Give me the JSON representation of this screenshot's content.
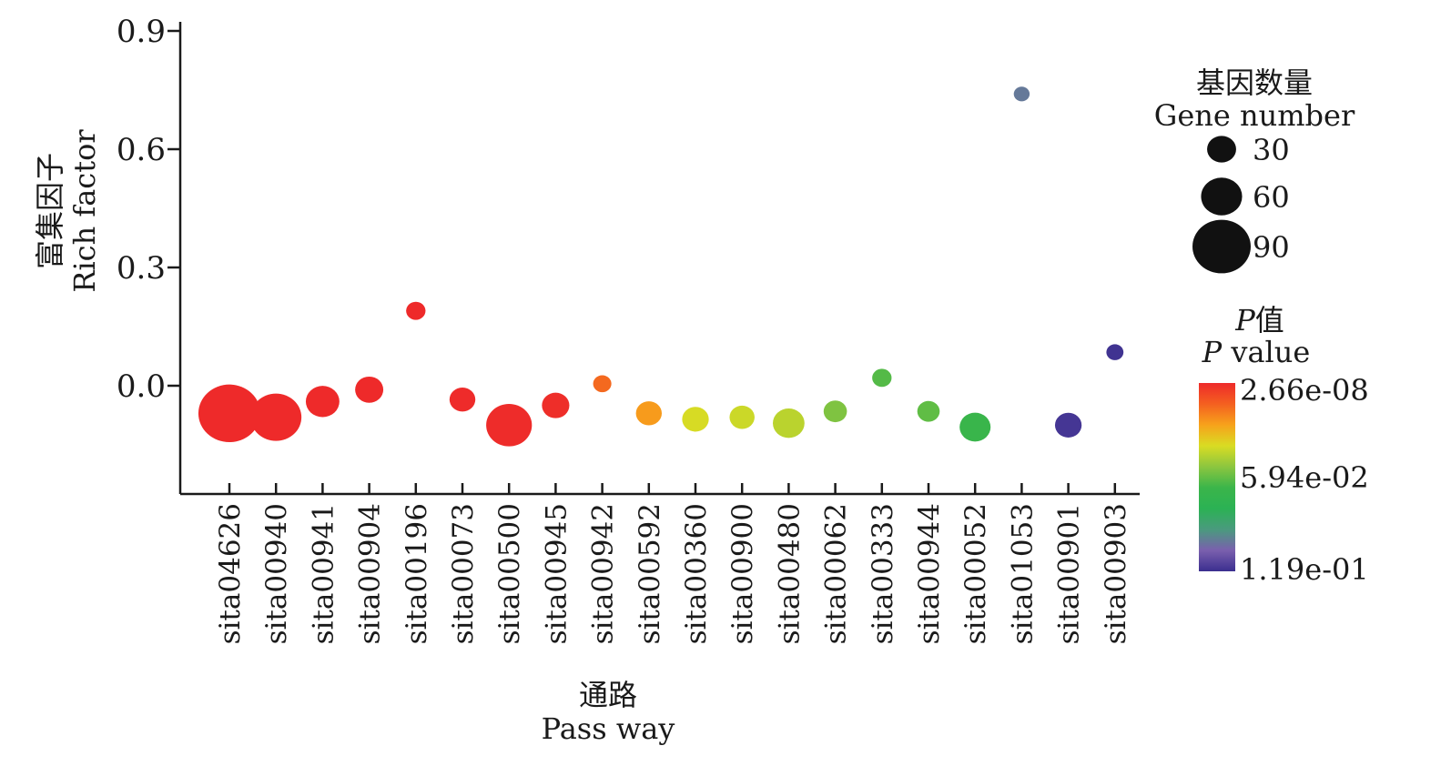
{
  "chart_data": {
    "type": "scatter",
    "title": "",
    "xlabel": "通路",
    "xlabel_en": "Pass way",
    "ylabel": "富集因子",
    "ylabel_en": "Rich factor",
    "ylim": [
      -0.27,
      0.9
    ],
    "yticks": [
      0.9,
      0.6,
      0.3,
      0.0
    ],
    "ytick_labels": [
      "0.9",
      "0.6",
      "0.3",
      "0.0"
    ],
    "categories": [
      "sita04626",
      "sita00940",
      "sita00941",
      "sita00904",
      "sita00196",
      "sita00073",
      "sita00500",
      "sita00945",
      "sita00942",
      "sita00592",
      "sita00360",
      "sita00900",
      "sita00480",
      "sita00062",
      "sita00333",
      "sita00944",
      "sita00052",
      "sita01053",
      "sita00901",
      "sita00903"
    ],
    "rich_factor": [
      -0.07,
      -0.08,
      -0.04,
      -0.01,
      0.19,
      -0.035,
      -0.1,
      -0.05,
      0.005,
      -0.07,
      -0.085,
      -0.08,
      -0.095,
      -0.065,
      0.02,
      -0.065,
      -0.105,
      0.74,
      -0.1,
      0.085
    ],
    "gene_number": [
      92,
      62,
      27,
      19,
      9,
      16,
      50,
      18,
      8,
      16,
      17,
      15,
      24,
      13,
      9,
      12,
      23,
      6,
      17,
      7
    ],
    "p_value": [
      2.66e-08,
      1.2e-06,
      3.5e-05,
      6e-05,
      0.0001,
      0.0003,
      0.0006,
      0.0009,
      0.015,
      0.025,
      0.04,
      0.042,
      0.045,
      0.055,
      0.062,
      0.06,
      0.068,
      0.1,
      0.117,
      0.118
    ],
    "size_legend": {
      "title": "基因数量",
      "subtitle": "Gene number",
      "values": [
        30,
        60,
        90
      ],
      "labels": [
        "30",
        "60",
        "90"
      ]
    },
    "color_legend": {
      "title_italic": "P",
      "title_suffix": "值",
      "subtitle_italic": "P",
      "subtitle_suffix": " value",
      "labels": [
        "2.66e-08",
        "5.94e-02",
        "1.19e-01"
      ],
      "range": [
        2.66e-08,
        0.119
      ],
      "colors": [
        "#ee2a2a",
        "#f46020",
        "#f7a21b",
        "#d9dc23",
        "#8cc63f",
        "#3bb54a",
        "#2bb254",
        "#4a9a7e",
        "#7a5fae",
        "#3b2f8f"
      ]
    },
    "grid": false,
    "legend_position": "right"
  }
}
